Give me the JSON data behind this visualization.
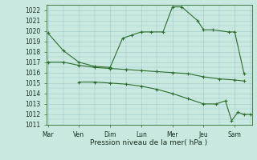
{
  "background_color": "#c8e8e0",
  "grid_color": "#a0c8c8",
  "line_color": "#2d6e2d",
  "title": "Pression niveau de la mer( hPa )",
  "ylim": [
    1011,
    1022.5
  ],
  "yticks": [
    1011,
    1012,
    1013,
    1014,
    1015,
    1016,
    1017,
    1018,
    1019,
    1020,
    1021,
    1022
  ],
  "x_labels": [
    "Mar",
    "Ven",
    "Dim",
    "Lun",
    "Mer",
    "Jeu",
    "Sam"
  ],
  "x_tick_pos": [
    0,
    1,
    2,
    3,
    4,
    5,
    6
  ],
  "xlim": [
    -0.05,
    6.55
  ],
  "line1_x": [
    0,
    0.5,
    1.0,
    1.5,
    2.0,
    2.4,
    2.7,
    3.0,
    3.3,
    3.7,
    4.0,
    4.3,
    4.8,
    5.0,
    5.3,
    5.8,
    6.0,
    6.3
  ],
  "line1_y": [
    1019.8,
    1018.1,
    1017.0,
    1016.6,
    1016.5,
    1019.3,
    1019.6,
    1019.9,
    1019.9,
    1019.9,
    1022.3,
    1022.3,
    1021.0,
    1020.1,
    1020.1,
    1019.9,
    1019.9,
    1015.9
  ],
  "line2_x": [
    0,
    0.5,
    1.0,
    1.5,
    2.0,
    2.5,
    3.0,
    3.5,
    4.0,
    4.5,
    5.0,
    5.5,
    6.0,
    6.3
  ],
  "line2_y": [
    1017.0,
    1017.0,
    1016.7,
    1016.5,
    1016.4,
    1016.3,
    1016.2,
    1016.1,
    1016.0,
    1015.9,
    1015.6,
    1015.4,
    1015.3,
    1015.2
  ],
  "line3_x": [
    1.0,
    1.5,
    2.0,
    2.5,
    3.0,
    3.5,
    4.0,
    4.5,
    5.0,
    5.4,
    5.7,
    5.9,
    6.1,
    6.3,
    6.5
  ],
  "line3_y": [
    1015.1,
    1015.1,
    1015.0,
    1014.9,
    1014.7,
    1014.4,
    1014.0,
    1013.5,
    1013.0,
    1013.0,
    1013.3,
    1011.4,
    1012.2,
    1012.0,
    1012.0
  ]
}
